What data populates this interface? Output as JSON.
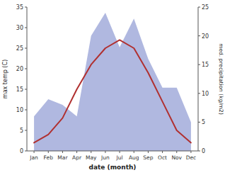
{
  "chart_data": {
    "type": "line",
    "categories": [
      "Jan",
      "Feb",
      "Mar",
      "Apr",
      "May",
      "Jun",
      "Jul",
      "Aug",
      "Sep",
      "Oct",
      "Nov",
      "Dec"
    ],
    "xlabel": "date (month)",
    "ylabel": "max temp (C)",
    "y2label": "med. precipitation (kg/m2)",
    "ylim": [
      0,
      35
    ],
    "yticks": [
      0,
      5,
      10,
      15,
      20,
      25,
      30,
      35
    ],
    "y2lim": [
      0,
      25
    ],
    "y2ticks": [
      0,
      5,
      10,
      15,
      20,
      25
    ],
    "grid": false,
    "series": [
      {
        "type": "area",
        "axis": "y2",
        "color": "#b0b8e0",
        "values": [
          6,
          9,
          8,
          6,
          20,
          24,
          18,
          23,
          16,
          11,
          11,
          5
        ]
      },
      {
        "type": "line",
        "color": "#b03030",
        "values": [
          2,
          4,
          8,
          15,
          21,
          25,
          27,
          25,
          19,
          12,
          5,
          2
        ]
      }
    ]
  }
}
